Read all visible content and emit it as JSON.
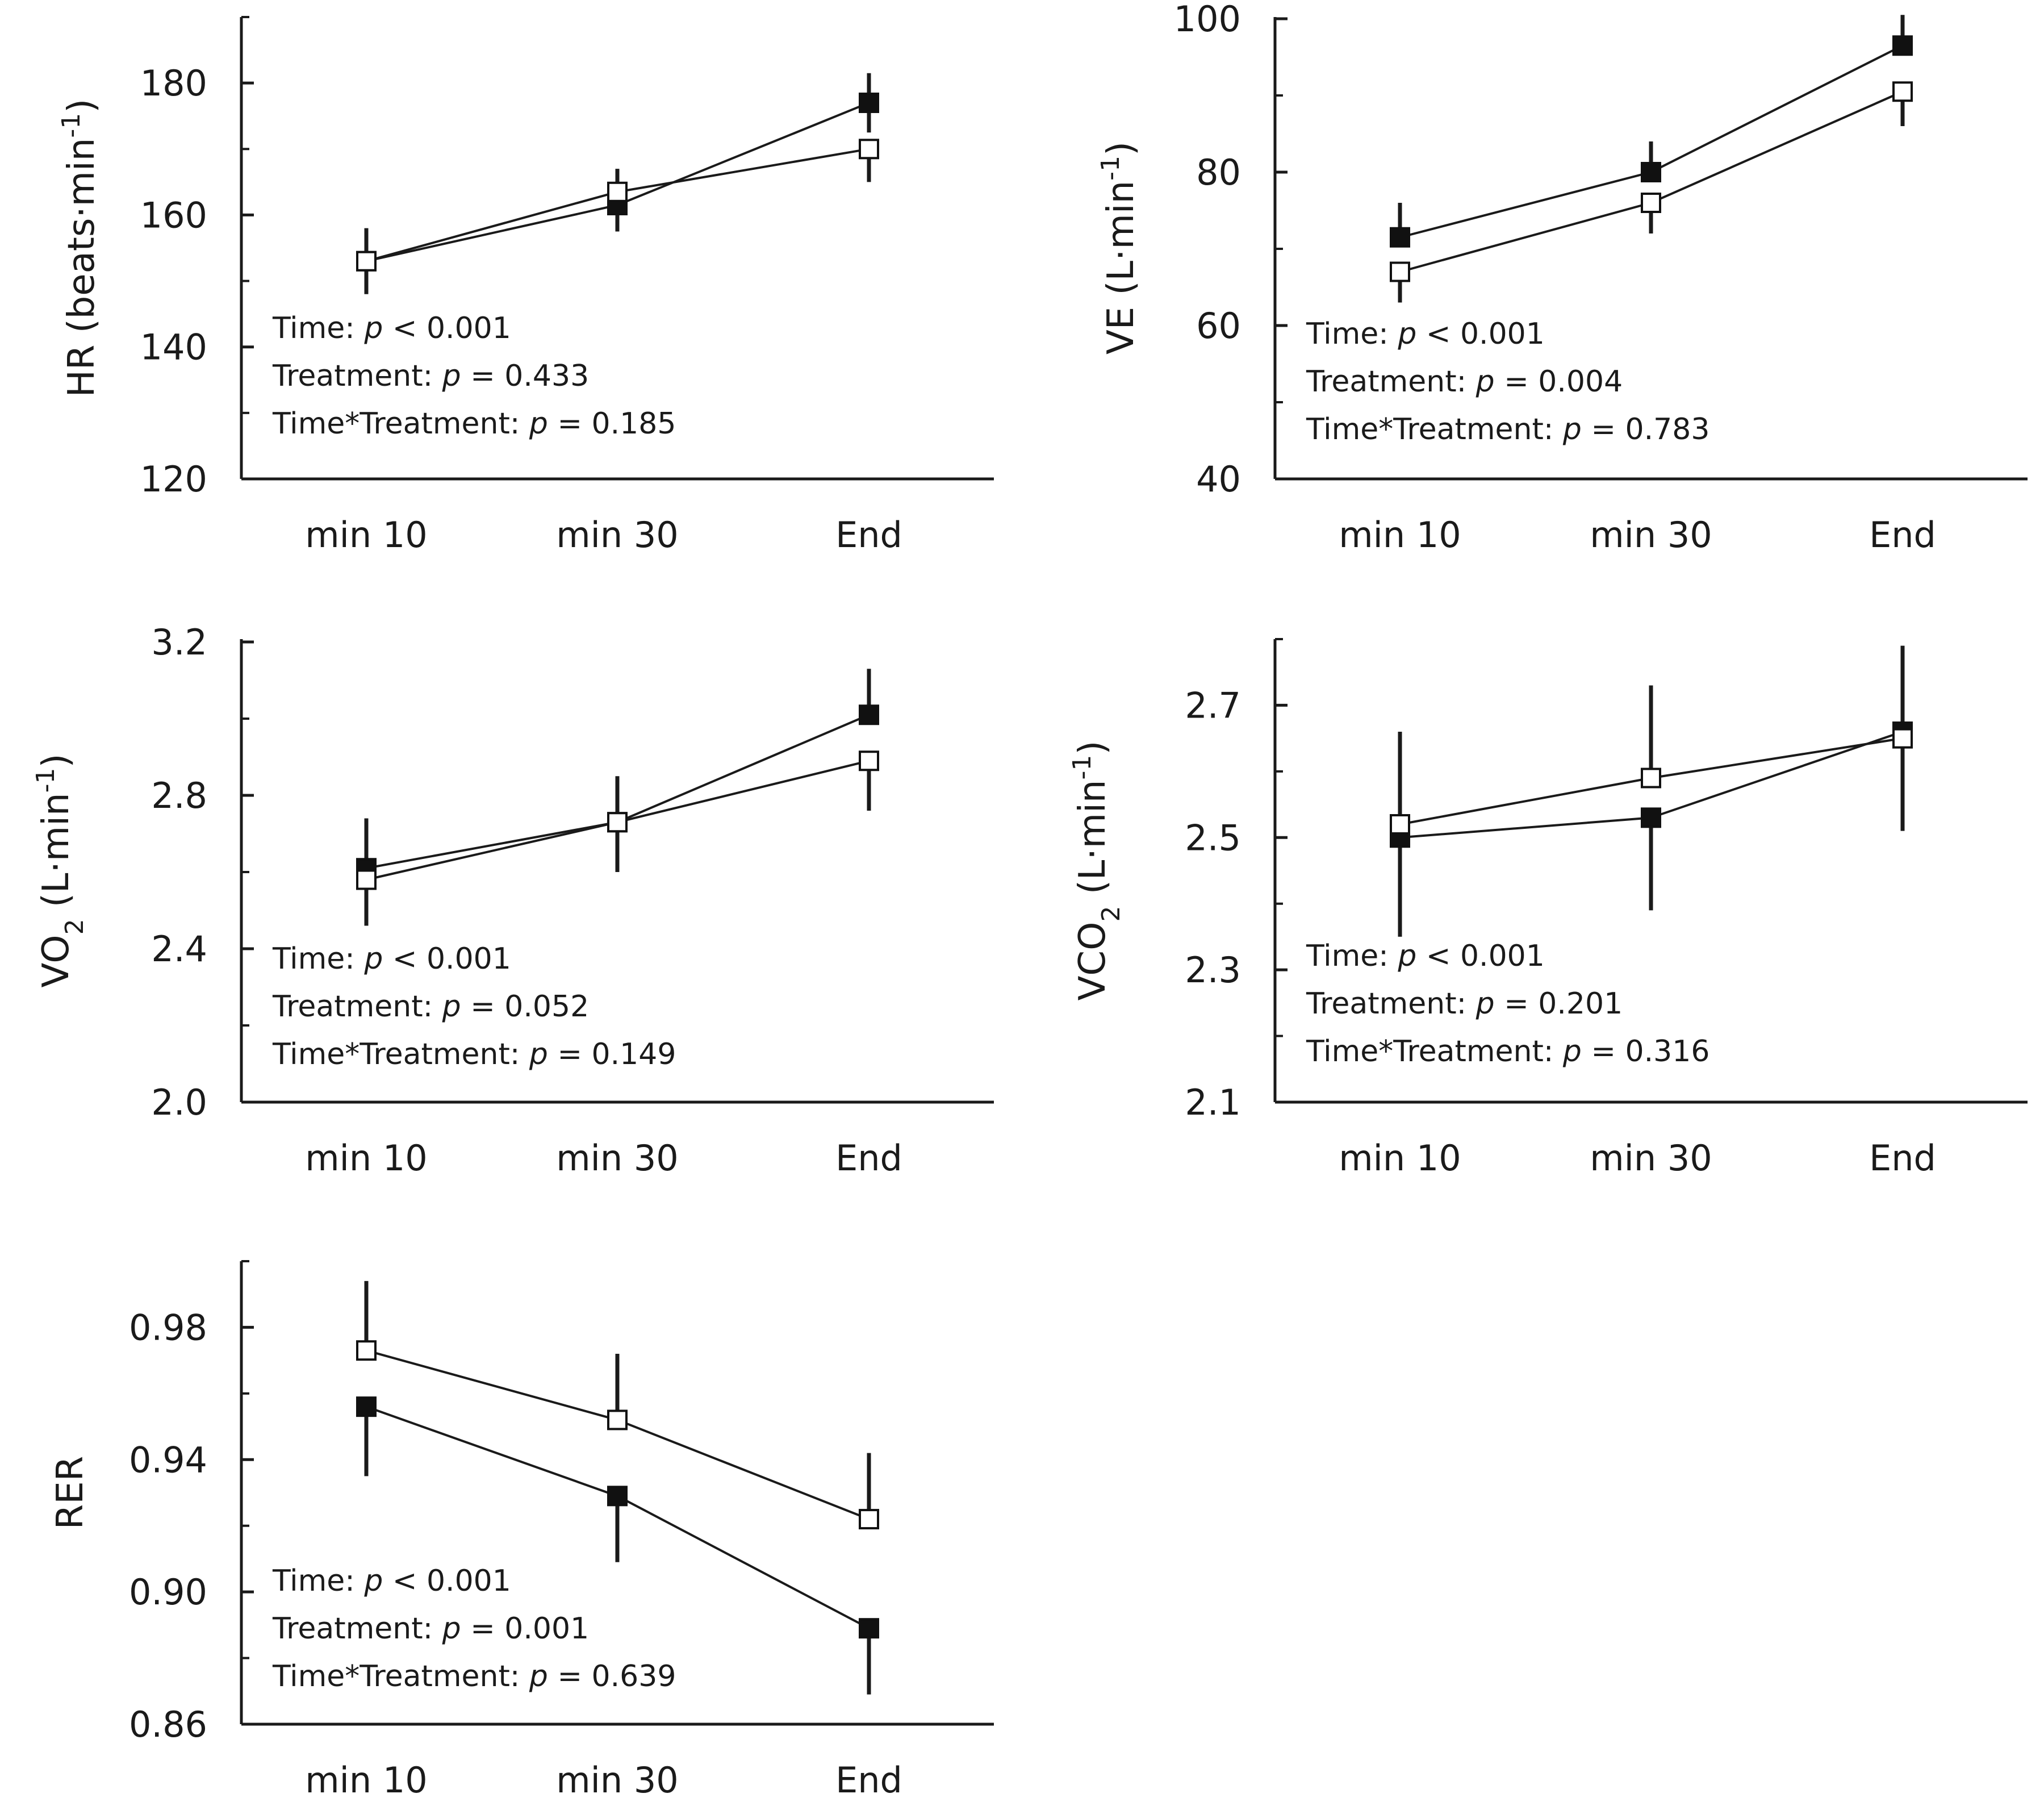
{
  "chart_data": [
    {
      "id": "hr",
      "type": "line",
      "ylabel_main": "HR (beats·min",
      "ylabel_sup": "-1",
      "ylabel_sub": "",
      "ylabel_tail": ")",
      "categories": [
        "min 10",
        "min 30",
        "End"
      ],
      "ylim": [
        120,
        190
      ],
      "yticks": [
        120,
        140,
        160,
        180
      ],
      "ytick_labels": [
        "120",
        "140",
        "160",
        "180"
      ],
      "minor_ticks": [
        130,
        150,
        170,
        190
      ],
      "series": [
        {
          "name": "filled",
          "marker": "filled-square",
          "values": [
            153,
            161.5,
            177
          ],
          "err": [
            5,
            4,
            4.5
          ],
          "err_dir": "both"
        },
        {
          "name": "open",
          "marker": "open-square",
          "values": [
            153,
            163.5,
            170
          ],
          "err": [
            3.5,
            3.5,
            5
          ],
          "err_dir": "down_min10_up_min30_down_end"
        }
      ],
      "stats": [
        {
          "label": "Time: ",
          "p": "p",
          "rest": " < 0.001"
        },
        {
          "label": "Treatment: ",
          "p": "p",
          "rest": " = 0.433"
        },
        {
          "label": "Time*Treatment: ",
          "p": "p",
          "rest": " = 0.185"
        }
      ]
    },
    {
      "id": "ve",
      "type": "line",
      "ylabel_main": "VE (L·min",
      "ylabel_sup": "-1",
      "ylabel_sub": "",
      "ylabel_tail": ")",
      "categories": [
        "min 10",
        "min 30",
        "End"
      ],
      "ylim": [
        40,
        100
      ],
      "yticks": [
        40,
        60,
        80,
        100
      ],
      "ytick_labels": [
        "40",
        "60",
        "80",
        "100"
      ],
      "minor_ticks": [
        50,
        70,
        90
      ],
      "series": [
        {
          "name": "filled",
          "marker": "filled-square",
          "values": [
            71.5,
            80,
            96.5
          ],
          "err": [
            4.5,
            4,
            4
          ],
          "err_dir": "up"
        },
        {
          "name": "open",
          "marker": "open-square",
          "values": [
            67,
            76,
            90.5
          ],
          "err": [
            4,
            4,
            4.5
          ],
          "err_dir": "down"
        }
      ],
      "stats": [
        {
          "label": "Time: ",
          "p": "p",
          "rest": " < 0.001"
        },
        {
          "label": "Treatment: ",
          "p": "p",
          "rest": " = 0.004"
        },
        {
          "label": "Time*Treatment: ",
          "p": "p",
          "rest": " = 0.783"
        }
      ]
    },
    {
      "id": "vo2",
      "type": "line",
      "ylabel_main": "VO",
      "ylabel_sup": "-1",
      "ylabel_sub": "2",
      "ylabel_mid": " (L·min",
      "ylabel_tail": ")",
      "categories": [
        "min 10",
        "min 30",
        "End"
      ],
      "ylim": [
        2.0,
        3.2
      ],
      "yticks": [
        2.0,
        2.4,
        2.8,
        3.2
      ],
      "ytick_labels": [
        "2.0",
        "2.4",
        "2.8",
        "3.2"
      ],
      "minor_ticks": [
        2.2,
        2.6,
        3.0
      ],
      "series": [
        {
          "name": "filled",
          "marker": "filled-square",
          "values": [
            2.61,
            2.73,
            3.01
          ],
          "err": [
            0.13,
            0.12,
            0.12
          ],
          "err_dir": "up"
        },
        {
          "name": "open",
          "marker": "open-square",
          "values": [
            2.58,
            2.73,
            2.89
          ],
          "err": [
            0.12,
            0.13,
            0.13
          ],
          "err_dir": "down"
        }
      ],
      "stats": [
        {
          "label": "Time: ",
          "p": "p",
          "rest": " < 0.001"
        },
        {
          "label": "Treatment: ",
          "p": "p",
          "rest": " = 0.052"
        },
        {
          "label": "Time*Treatment: ",
          "p": "p",
          "rest": " = 0.149"
        }
      ]
    },
    {
      "id": "vco2",
      "type": "line",
      "ylabel_main": "VCO",
      "ylabel_sup": "-1",
      "ylabel_sub": "2",
      "ylabel_mid": " (L·min",
      "ylabel_tail": ")",
      "categories": [
        "min 10",
        "min 30",
        "End"
      ],
      "ylim": [
        2.1,
        2.8
      ],
      "yticks": [
        2.1,
        2.3,
        2.5,
        2.7
      ],
      "ytick_labels": [
        "2.1",
        "2.3",
        "2.5",
        "2.7"
      ],
      "minor_ticks": [
        2.2,
        2.4,
        2.6,
        2.8
      ],
      "series": [
        {
          "name": "filled",
          "marker": "filled-square",
          "values": [
            2.5,
            2.53,
            2.66
          ],
          "err": [
            0.15,
            0.14,
            0.15
          ],
          "err_dir": "down"
        },
        {
          "name": "open",
          "marker": "open-square",
          "values": [
            2.52,
            2.59,
            2.65
          ],
          "err": [
            0.14,
            0.14,
            0.14
          ],
          "err_dir": "up"
        }
      ],
      "stats": [
        {
          "label": "Time: ",
          "p": "p",
          "rest": " < 0.001"
        },
        {
          "label": "Treatment: ",
          "p": "p",
          "rest": " = 0.201"
        },
        {
          "label": "Time*Treatment: ",
          "p": "p",
          "rest": " = 0.316"
        }
      ]
    },
    {
      "id": "rer",
      "type": "line",
      "ylabel_main": "RER",
      "ylabel_sup": "",
      "ylabel_sub": "",
      "ylabel_tail": "",
      "categories": [
        "min 10",
        "min 30",
        "End"
      ],
      "ylim": [
        0.86,
        1.0
      ],
      "yticks": [
        0.86,
        0.9,
        0.94,
        0.98
      ],
      "ytick_labels": [
        "0.86",
        "0.90",
        "0.94",
        "0.98"
      ],
      "minor_ticks": [
        0.88,
        0.92,
        0.96,
        1.0
      ],
      "series": [
        {
          "name": "filled",
          "marker": "filled-square",
          "values": [
            0.956,
            0.929,
            0.889
          ],
          "err": [
            0.021,
            0.02,
            0.02
          ],
          "err_dir": "down"
        },
        {
          "name": "open",
          "marker": "open-square",
          "values": [
            0.973,
            0.952,
            0.922
          ],
          "err": [
            0.021,
            0.02,
            0.02
          ],
          "err_dir": "up"
        }
      ],
      "stats": [
        {
          "label": "Time: ",
          "p": "p",
          "rest": " < 0.001"
        },
        {
          "label": "Treatment: ",
          "p": "p",
          "rest": " = 0.001"
        },
        {
          "label": "Time*Treatment: ",
          "p": "p",
          "rest": " = 0.639"
        }
      ]
    }
  ]
}
